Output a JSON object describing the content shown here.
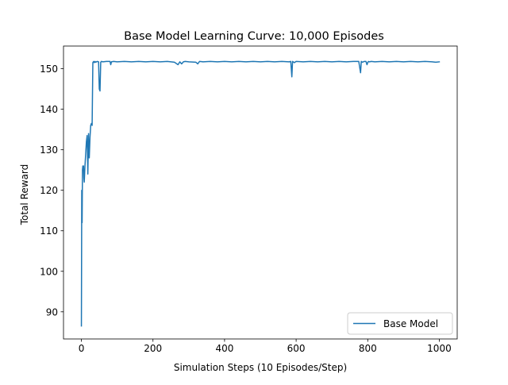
{
  "chart_data": {
    "type": "line",
    "title": "Base Model Learning Curve: 10,000 Episodes",
    "xlabel": "Simulation Steps (10 Episodes/Step)",
    "ylabel": "Total Reward",
    "xlim": [
      -50,
      1050
    ],
    "ylim": [
      83.3,
      155.6
    ],
    "xticks": [
      0,
      200,
      400,
      600,
      800,
      1000
    ],
    "yticks": [
      90,
      100,
      110,
      120,
      130,
      140,
      150
    ],
    "grid": false,
    "legend_position": "lower right",
    "series": [
      {
        "name": "Base Model",
        "color": "#1f77b4",
        "x": [
          0,
          1,
          2,
          3,
          4,
          5,
          6,
          7,
          8,
          9,
          10,
          12,
          14,
          16,
          18,
          20,
          21,
          22,
          24,
          26,
          28,
          30,
          32,
          34,
          36,
          38,
          40,
          44,
          48,
          50,
          52,
          54,
          56,
          60,
          70,
          80,
          82,
          84,
          90,
          100,
          120,
          140,
          160,
          180,
          200,
          220,
          240,
          260,
          270,
          275,
          280,
          285,
          290,
          300,
          320,
          325,
          330,
          340,
          360,
          380,
          400,
          420,
          440,
          460,
          480,
          500,
          520,
          540,
          560,
          580,
          585,
          588,
          590,
          595,
          600,
          620,
          640,
          660,
          680,
          700,
          720,
          740,
          760,
          775,
          780,
          782,
          785,
          790,
          795,
          798,
          800,
          802,
          805,
          810,
          820,
          840,
          860,
          880,
          900,
          920,
          940,
          960,
          980,
          990,
          1000
        ],
        "y": [
          86.5,
          120,
          112,
          125,
          126,
          125.5,
          126,
          123,
          122,
          124,
          126,
          129,
          132,
          133.5,
          124,
          134,
          129,
          128,
          133,
          136,
          136.5,
          136,
          151.5,
          151.8,
          151.5,
          151.8,
          151.6,
          151.8,
          151.7,
          145,
          144.5,
          151.6,
          151.8,
          151.7,
          151.8,
          151.8,
          151,
          151.7,
          151.8,
          151.7,
          151.8,
          151.7,
          151.8,
          151.7,
          151.8,
          151.7,
          151.8,
          151.6,
          151.0,
          151.7,
          151.2,
          151.7,
          151.8,
          151.7,
          151.6,
          151.2,
          151.8,
          151.7,
          151.8,
          151.7,
          151.8,
          151.7,
          151.8,
          151.7,
          151.8,
          151.7,
          151.8,
          151.7,
          151.8,
          151.7,
          151.8,
          148,
          151.8,
          151.5,
          151.8,
          151.7,
          151.8,
          151.7,
          151.8,
          151.7,
          151.8,
          151.7,
          151.8,
          151.8,
          149,
          151.8,
          151.6,
          151.8,
          151.8,
          151.0,
          151.5,
          151.8,
          151.7,
          151.8,
          151.7,
          151.8,
          151.7,
          151.8,
          151.7,
          151.8,
          151.7,
          151.8,
          151.7,
          151.6,
          151.7
        ]
      }
    ]
  }
}
